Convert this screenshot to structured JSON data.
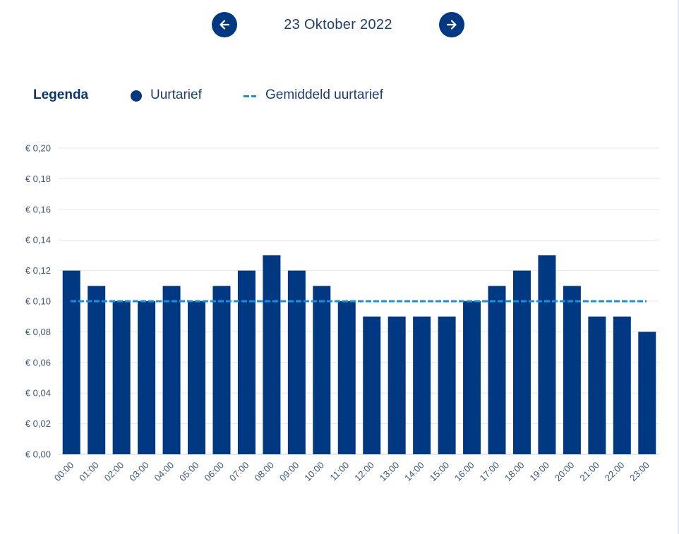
{
  "navigation": {
    "date": "23 Oktober 2022",
    "prev_icon": "arrow-left-icon",
    "next_icon": "arrow-right-icon"
  },
  "legend": {
    "title": "Legenda",
    "items": [
      {
        "label": "Uurtarief",
        "marker": "circle",
        "color": "#003882"
      },
      {
        "label": "Gemiddeld uurtarief",
        "marker": "dashed-line",
        "color": "#1a90d8"
      }
    ]
  },
  "chart_data": {
    "type": "bar",
    "title": "",
    "xlabel": "",
    "ylabel": "",
    "categories": [
      "00:00",
      "01:00",
      "02:00",
      "03:00",
      "04:00",
      "05:00",
      "06:00",
      "07:00",
      "08:00",
      "09:00",
      "10:00",
      "11:00",
      "12:00",
      "13:00",
      "14:00",
      "15:00",
      "16:00",
      "17:00",
      "18:00",
      "19:00",
      "20:00",
      "21:00",
      "22:00",
      "23:00"
    ],
    "series": [
      {
        "name": "Uurtarief",
        "color": "#003882",
        "values": [
          0.12,
          0.11,
          0.1,
          0.1,
          0.11,
          0.1,
          0.11,
          0.12,
          0.13,
          0.12,
          0.11,
          0.1,
          0.09,
          0.09,
          0.09,
          0.09,
          0.1,
          0.11,
          0.12,
          0.13,
          0.11,
          0.09,
          0.09,
          0.08
        ]
      },
      {
        "name": "Gemiddeld uurtarief",
        "color": "#1a90d8",
        "style": "dashed",
        "value": 0.1
      }
    ],
    "yticks": [
      "€ 0,00",
      "€ 0,02",
      "€ 0,04",
      "€ 0,06",
      "€ 0,08",
      "€ 0,10",
      "€ 0,12",
      "€ 0,14",
      "€ 0,16",
      "€ 0,18",
      "€ 0,20"
    ],
    "ylim": [
      0,
      0.2
    ],
    "grid": true
  }
}
